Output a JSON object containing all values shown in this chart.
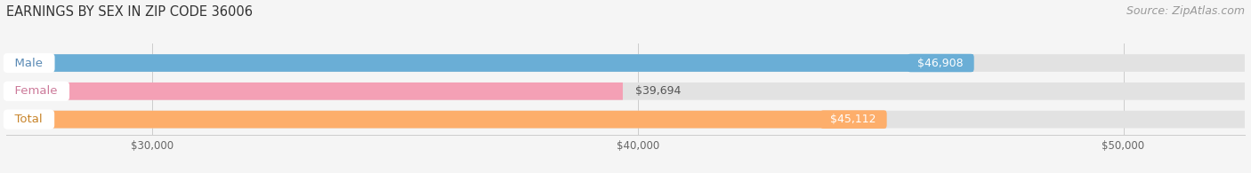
{
  "title": "EARNINGS BY SEX IN ZIP CODE 36006",
  "source": "Source: ZipAtlas.com",
  "categories": [
    "Male",
    "Female",
    "Total"
  ],
  "values": [
    46908,
    39694,
    45112
  ],
  "bar_colors": [
    "#6aaed6",
    "#f4a0b5",
    "#fdae6b"
  ],
  "bar_bg_color": "#e8e8e8",
  "value_label_colors": [
    "white",
    "#555555",
    "white"
  ],
  "value_bg_colors": [
    "#6aaed6",
    "none",
    "#fdae6b"
  ],
  "cat_text_colors": [
    "#5a8ab5",
    "#cc7a9a",
    "#c8842a"
  ],
  "xmin": 27000,
  "xmax": 52500,
  "xticks": [
    30000,
    40000,
    50000
  ],
  "xtick_labels": [
    "$30,000",
    "$40,000",
    "$50,000"
  ],
  "title_fontsize": 10.5,
  "source_fontsize": 9,
  "bar_label_fontsize": 9,
  "category_fontsize": 9.5,
  "figsize": [
    14.06,
    1.95
  ],
  "dpi": 100,
  "background_color": "#f5f5f5"
}
